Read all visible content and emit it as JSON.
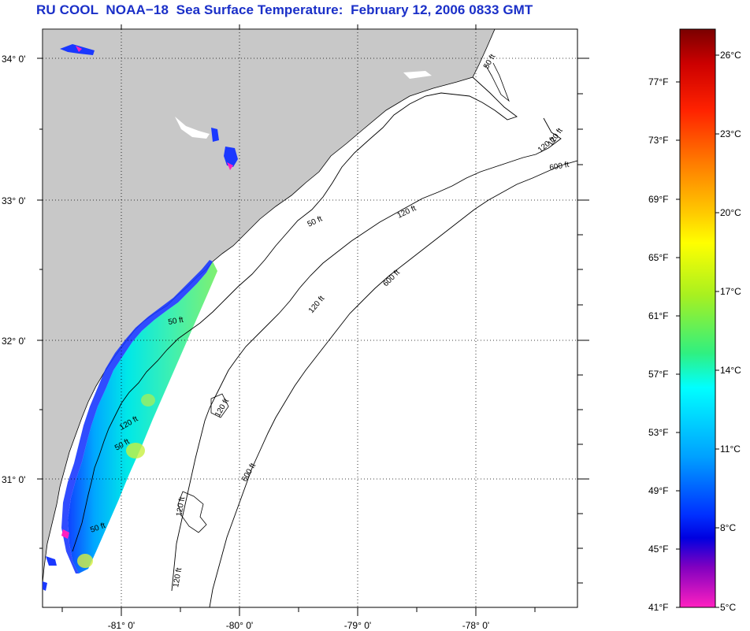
{
  "title": "RU COOL  NOAA−18  Sea Surface Temperature:  February 12, 2006 0833 GMT",
  "colors": {
    "title": "#1a2fc8",
    "land": "#c8c8c8",
    "ocean": "#ffffff",
    "no_data_cloud": "#ffffff"
  },
  "map": {
    "lon_labels": [
      "-81° 0'",
      "-80° 0'",
      "-79° 0'",
      "-78° 0'"
    ],
    "lat_labels": [
      "34° 0'",
      "33° 0'",
      "32° 0'",
      "31° 0'"
    ],
    "contours": [
      {
        "label": "50 ft"
      },
      {
        "label": "120 ft"
      },
      {
        "label": "600 ft"
      }
    ],
    "contour_labels": [
      "50 ft",
      "120 ft",
      "600 ft",
      "50 ft",
      "120 ft",
      "600 ft",
      "120 ft",
      "50 ft",
      "600 ft",
      "120 ft",
      "50 ft",
      "120 ft",
      "120 ft",
      "120 ft",
      "120 ft",
      "50 ft"
    ]
  },
  "colorbar": {
    "fahrenheit_labels": [
      "77°F",
      "73°F",
      "69°F",
      "65°F",
      "61°F",
      "57°F",
      "53°F",
      "49°F",
      "45°F",
      "41°F"
    ],
    "celsius_labels": [
      "26°C",
      "23°C",
      "20°C",
      "17°C",
      "14°C",
      "11°C",
      "8°C",
      "5°C"
    ],
    "colors": [
      "#7a0000",
      "#cc0000",
      "#ff2200",
      "#ff7a00",
      "#ffcc00",
      "#ffff00",
      "#a8f020",
      "#30f080",
      "#00ffff",
      "#00a0ff",
      "#0030ff",
      "#0000e0",
      "#8000c0",
      "#ff20c0"
    ]
  }
}
